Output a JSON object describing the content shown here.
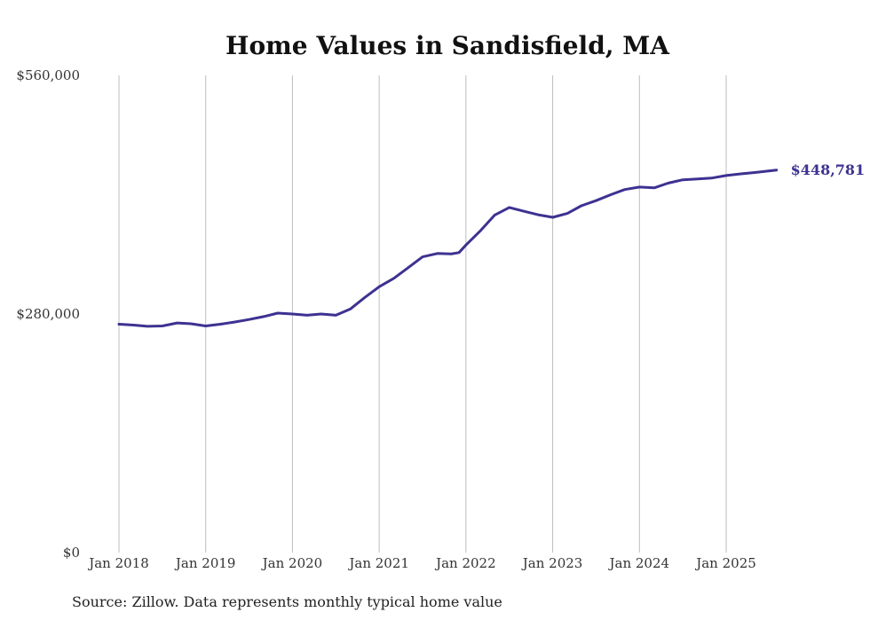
{
  "chart_data": {
    "type": "line",
    "title": "Home Values in Sandisfield, MA",
    "xlabel": "",
    "ylabel": "",
    "ylim": [
      0,
      560000
    ],
    "y_ticks": [
      {
        "value": 0,
        "label": "$0"
      },
      {
        "value": 280000,
        "label": "$280,000"
      },
      {
        "value": 560000,
        "label": "$560,000"
      }
    ],
    "x_ticks": [
      {
        "value": 2018.0,
        "label": "Jan 2018"
      },
      {
        "value": 2019.0,
        "label": "Jan 2019"
      },
      {
        "value": 2020.0,
        "label": "Jan 2020"
      },
      {
        "value": 2021.0,
        "label": "Jan 2021"
      },
      {
        "value": 2022.0,
        "label": "Jan 2022"
      },
      {
        "value": 2023.0,
        "label": "Jan 2023"
      },
      {
        "value": 2024.0,
        "label": "Jan 2024"
      },
      {
        "value": 2025.0,
        "label": "Jan 2025"
      }
    ],
    "grid": {
      "vertical": true,
      "horizontal": false
    },
    "series": [
      {
        "name": "Typical home value",
        "color": "#3d3291",
        "end_label": "$448,781",
        "points": [
          [
            2018.0,
            268000
          ],
          [
            2018.17,
            267000
          ],
          [
            2018.33,
            265500
          ],
          [
            2018.5,
            266000
          ],
          [
            2018.67,
            269500
          ],
          [
            2018.83,
            268500
          ],
          [
            2019.0,
            266000
          ],
          [
            2019.17,
            268000
          ],
          [
            2019.33,
            270500
          ],
          [
            2019.5,
            273500
          ],
          [
            2019.67,
            277000
          ],
          [
            2019.83,
            281000
          ],
          [
            2020.0,
            280000
          ],
          [
            2020.17,
            278500
          ],
          [
            2020.33,
            280000
          ],
          [
            2020.5,
            278500
          ],
          [
            2020.67,
            286000
          ],
          [
            2020.83,
            299000
          ],
          [
            2021.0,
            312000
          ],
          [
            2021.17,
            322000
          ],
          [
            2021.33,
            334000
          ],
          [
            2021.5,
            347000
          ],
          [
            2021.67,
            351000
          ],
          [
            2021.83,
            350500
          ],
          [
            2021.92,
            352000
          ],
          [
            2022.0,
            361000
          ],
          [
            2022.17,
            378000
          ],
          [
            2022.33,
            396000
          ],
          [
            2022.5,
            405000
          ],
          [
            2022.67,
            400500
          ],
          [
            2022.83,
            396500
          ],
          [
            2023.0,
            393500
          ],
          [
            2023.17,
            398000
          ],
          [
            2023.33,
            407000
          ],
          [
            2023.5,
            413000
          ],
          [
            2023.67,
            420000
          ],
          [
            2023.83,
            426000
          ],
          [
            2024.0,
            429000
          ],
          [
            2024.17,
            428000
          ],
          [
            2024.33,
            433500
          ],
          [
            2024.5,
            437500
          ],
          [
            2024.67,
            438500
          ],
          [
            2024.83,
            439500
          ],
          [
            2025.0,
            442500
          ],
          [
            2025.17,
            444500
          ],
          [
            2025.33,
            446000
          ],
          [
            2025.5,
            448000
          ],
          [
            2025.58,
            448781
          ]
        ]
      }
    ]
  },
  "source_note": "Source: Zillow. Data represents monthly typical home value"
}
